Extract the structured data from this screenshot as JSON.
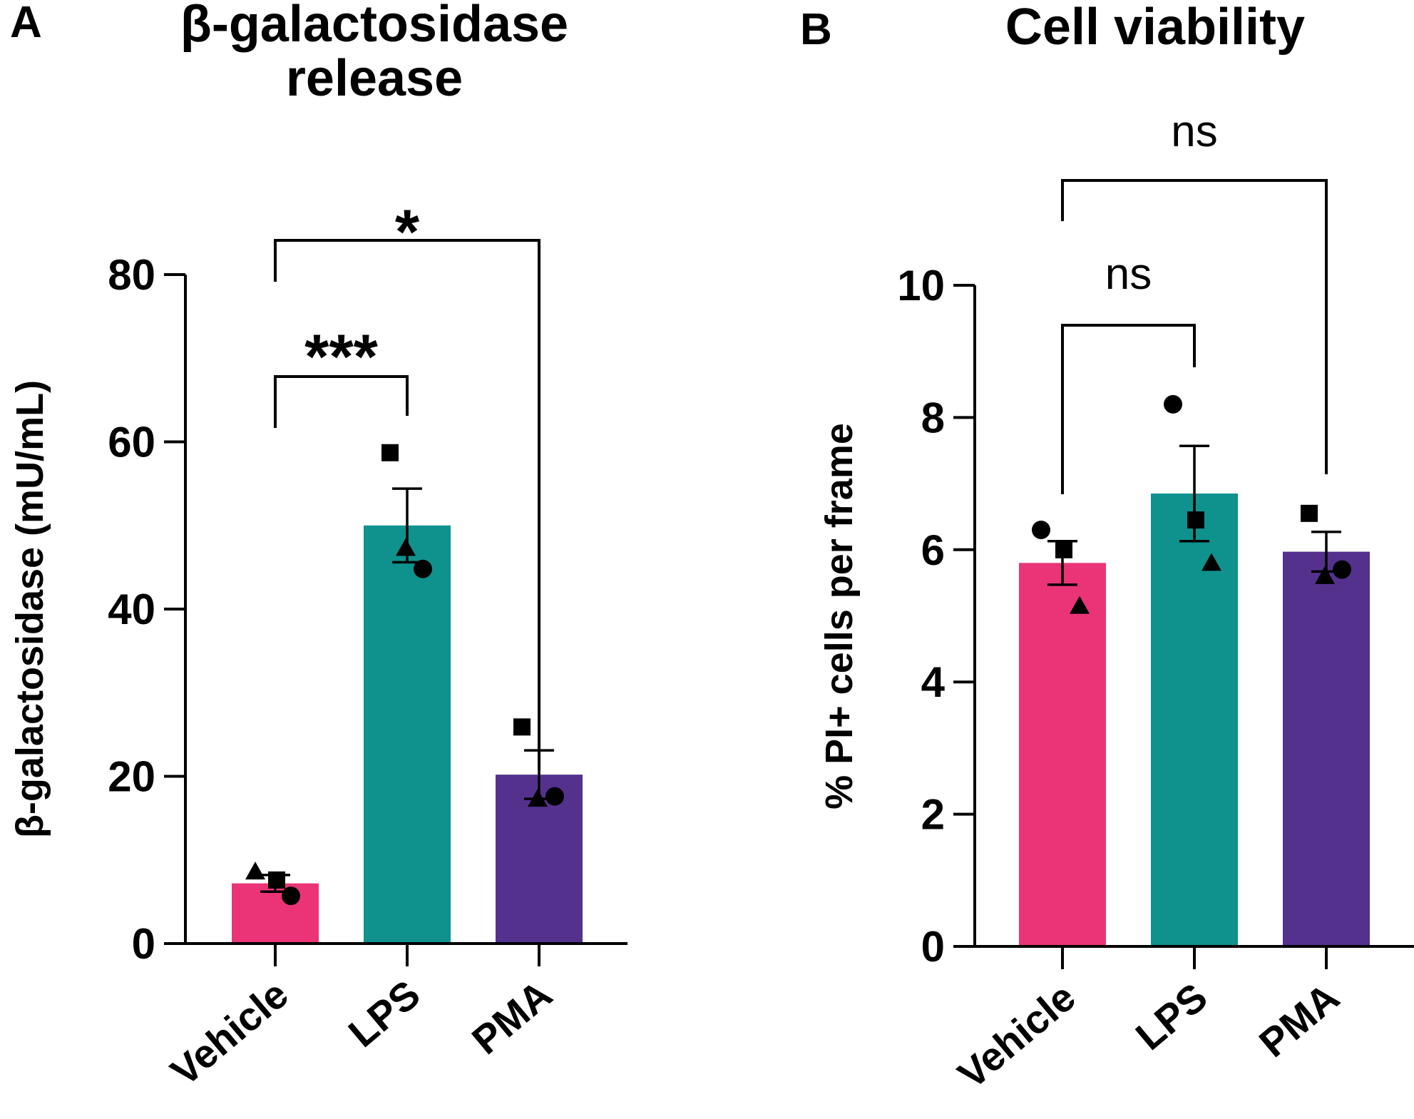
{
  "chart_data": [
    {
      "panel": "A",
      "type": "bar",
      "title": "β-galactosidase release",
      "title_lines": [
        "β-galactosidase",
        "release"
      ],
      "xlabel": "",
      "ylabel": "β-galactosidase (mU/mL)",
      "ylim": [
        0,
        80
      ],
      "yticks": [
        0,
        20,
        40,
        60,
        80
      ],
      "categories": [
        "Vehicle",
        "LPS",
        "PMA"
      ],
      "values": [
        7.2,
        50.0,
        20.2
      ],
      "sem": [
        1.0,
        4.4,
        2.9
      ],
      "colors": [
        "#ea3477",
        "#0f928d",
        "#55318e"
      ],
      "points": [
        [
          {
            "marker": "triangle",
            "value": 8.6
          },
          {
            "marker": "square",
            "value": 7.6
          },
          {
            "marker": "circle",
            "value": 5.7
          }
        ],
        [
          {
            "marker": "square",
            "value": 58.7
          },
          {
            "marker": "triangle",
            "value": 47.3
          },
          {
            "marker": "circle",
            "value": 44.8
          }
        ],
        [
          {
            "marker": "square",
            "value": 25.9
          },
          {
            "marker": "triangle",
            "value": 17.3
          },
          {
            "marker": "circle",
            "value": 17.6
          }
        ]
      ],
      "comparisons": [
        {
          "from": 0,
          "to": 1,
          "label": "***",
          "kind": "star"
        },
        {
          "from": 0,
          "to": 2,
          "label": "*",
          "kind": "star"
        }
      ]
    },
    {
      "panel": "B",
      "type": "bar",
      "title": "Cell viability",
      "title_lines": [
        "Cell viability"
      ],
      "xlabel": "",
      "ylabel": "% PI+ cells per frame",
      "ylim": [
        0,
        10
      ],
      "yticks": [
        0,
        2,
        4,
        6,
        8,
        10
      ],
      "categories": [
        "Vehicle",
        "LPS",
        "PMA"
      ],
      "values": [
        5.8,
        6.85,
        5.97
      ],
      "sem": [
        0.33,
        0.72,
        0.3
      ],
      "colors": [
        "#ea3477",
        "#0f928d",
        "#55318e"
      ],
      "points": [
        [
          {
            "marker": "circle",
            "value": 6.3
          },
          {
            "marker": "square",
            "value": 6.0
          },
          {
            "marker": "triangle",
            "value": 5.15
          }
        ],
        [
          {
            "marker": "circle",
            "value": 8.2
          },
          {
            "marker": "square",
            "value": 6.45
          },
          {
            "marker": "triangle",
            "value": 5.8
          }
        ],
        [
          {
            "marker": "square",
            "value": 6.55
          },
          {
            "marker": "triangle",
            "value": 5.6
          },
          {
            "marker": "circle",
            "value": 5.7
          }
        ]
      ],
      "comparisons": [
        {
          "from": 0,
          "to": 1,
          "label": "ns",
          "kind": "text"
        },
        {
          "from": 0,
          "to": 2,
          "label": "ns",
          "kind": "text"
        }
      ]
    }
  ]
}
